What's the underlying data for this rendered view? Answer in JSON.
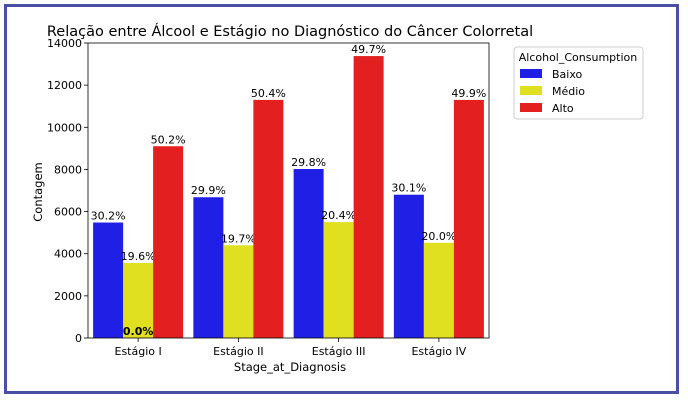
{
  "chart_data": {
    "type": "bar",
    "title": "Relação entre Álcool e Estágio no Diagnóstico do Câncer Colorretal",
    "xlabel": "Stage_at_Diagnosis",
    "ylabel": "Contagem",
    "categories": [
      "Estágio I",
      "Estágio II",
      "Estágio III",
      "Estágio IV"
    ],
    "ylim": [
      0,
      14000
    ],
    "yticks": [
      0,
      2000,
      4000,
      6000,
      8000,
      10000,
      12000,
      14000
    ],
    "legend": {
      "title": "Alcohol_Consumption",
      "placement": "outside-top-right"
    },
    "grid": false,
    "series": [
      {
        "name": "Baixo",
        "color": "#1f1fe6",
        "values": [
          5480,
          6680,
          8020,
          6800
        ],
        "labels": [
          "30.2%",
          "29.9%",
          "29.8%",
          "30.1%"
        ]
      },
      {
        "name": "Médio",
        "color": "#e0e020",
        "values": [
          3560,
          4400,
          5500,
          4520
        ],
        "labels": [
          "19.6%",
          "19.7%",
          "20.4%",
          "20.0%"
        ]
      },
      {
        "name": "Alto",
        "color": "#e31f1f",
        "values": [
          9100,
          11300,
          13380,
          11300
        ],
        "labels": [
          "50.2%",
          "50.4%",
          "49.7%",
          "49.9%"
        ]
      }
    ],
    "extra_annotation": "0.0%"
  }
}
